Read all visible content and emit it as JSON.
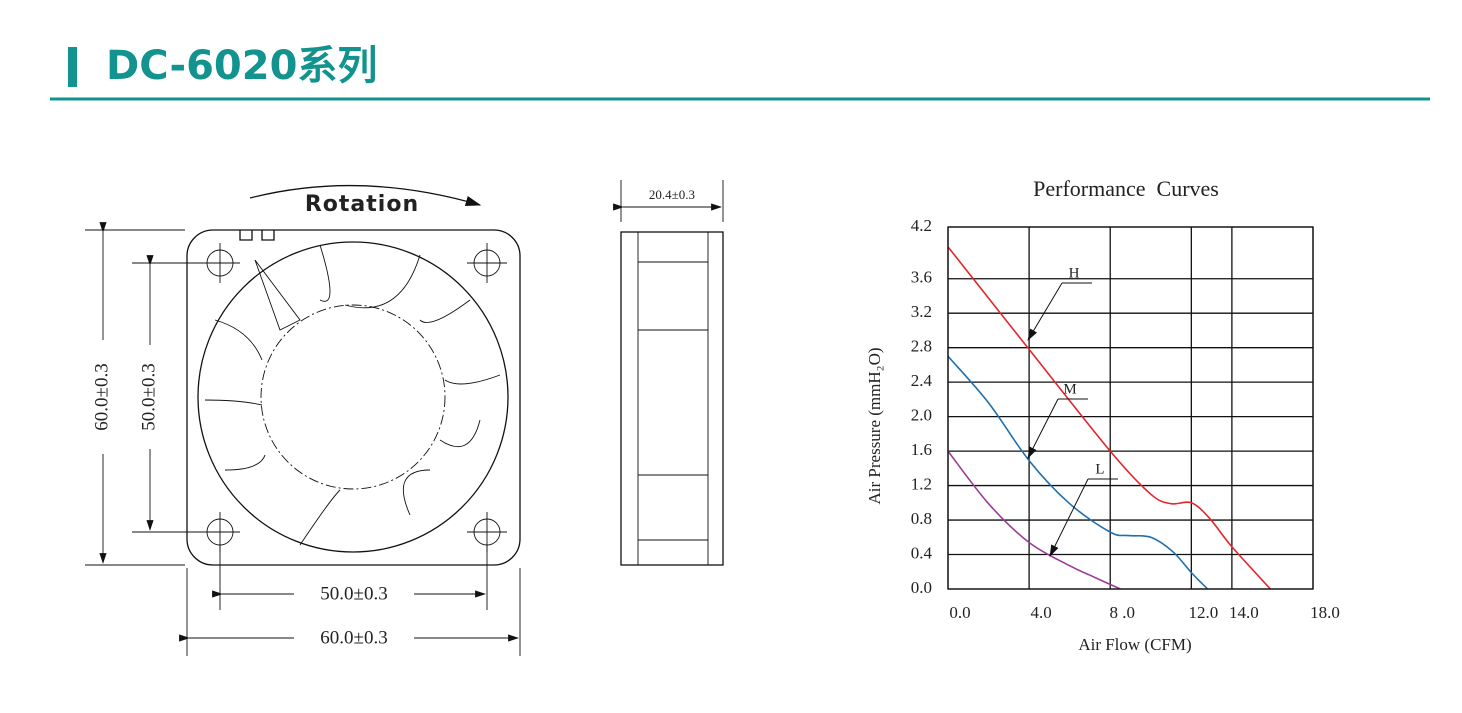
{
  "header": {
    "title": "DC-6020系列"
  },
  "drawing": {
    "rotation": "Rotation",
    "front_height": "60.0±0.3",
    "front_hole_height": "50.0±0.3",
    "front_hole_width": "50.0±0.3",
    "front_width": "60.0±0.3",
    "side_depth": "20.4±0.3"
  },
  "chart_data": {
    "type": "line",
    "title": "Performance  Curves",
    "xlabel": "Air Flow (CFM)",
    "ylabel": "Air Pressure (mmH₂O)",
    "xlim": [
      0,
      18
    ],
    "ylim": [
      0,
      4.2
    ],
    "xticks": [
      {
        "value": 0,
        "label": "0.0"
      },
      {
        "value": 4,
        "label": "4.0"
      },
      {
        "value": 8,
        "label": "8 .0"
      },
      {
        "value": 12,
        "label": "12.0"
      },
      {
        "value": 14,
        "label": "14.0"
      },
      {
        "value": 18,
        "label": "18.0"
      }
    ],
    "yticks": [
      {
        "value": 0,
        "label": "0.0"
      },
      0.4,
      0.8,
      1.2,
      1.6,
      {
        "value": 2,
        "label": "2.0"
      },
      2.4,
      2.8,
      3.2,
      3.6,
      4.2
    ],
    "grid": true,
    "series": [
      {
        "name": "H",
        "color": "#e3262d",
        "x": [
          0,
          4,
          8,
          10,
          11,
          12,
          12.9,
          14,
          15.9
        ],
        "values": [
          3.97,
          2.78,
          1.6,
          1.1,
          0.99,
          1.0,
          0.82,
          0.49,
          0
        ]
      },
      {
        "name": "M",
        "color": "#1f6fae",
        "x": [
          0,
          2,
          4,
          6,
          8,
          8.9,
          10,
          11.1,
          12,
          12.8
        ],
        "values": [
          2.7,
          2.16,
          1.49,
          0.99,
          0.66,
          0.62,
          0.6,
          0.43,
          0.19,
          0
        ]
      },
      {
        "name": "L",
        "color": "#9a3c98",
        "x": [
          0,
          2,
          4,
          6,
          7,
          8.5
        ],
        "values": [
          1.6,
          0.99,
          0.54,
          0.27,
          0.16,
          0
        ]
      }
    ]
  }
}
